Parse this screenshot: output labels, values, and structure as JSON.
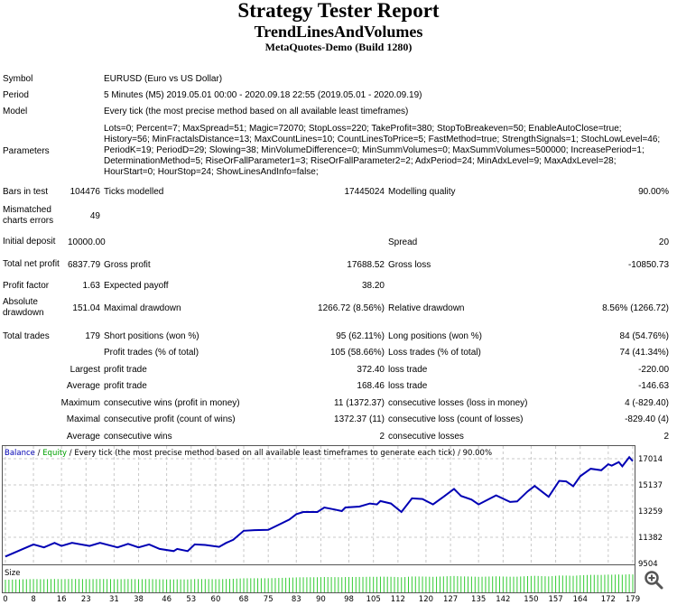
{
  "header": {
    "title": "Strategy Tester Report",
    "expert": "TrendLinesAndVolumes",
    "server": "MetaQuotes-Demo (Build 1280)"
  },
  "info": {
    "symbol_label": "Symbol",
    "symbol": "EURUSD (Euro vs US Dollar)",
    "period_label": "Period",
    "period": "5 Minutes (M5) 2019.05.01 00:00 - 2020.09.18 22:55 (2019.05.01 - 2020.09.19)",
    "model_label": "Model",
    "model": "Every tick (the most precise method based on all available least timeframes)",
    "parameters_label": "Parameters",
    "parameters": "Lots=0; Percent=7; MaxSpread=51; Magic=72070; StopLoss=220; TakeProfit=380; StopToBreakeven=50; EnableAutoClose=true; History=56; MinFractalsDistance=13; MaxCountLines=10; CountLinesToPrice=5; FastMethod=true; StrengthSignals=1; StochLowLevel=46; PeriodK=19; PeriodD=29; Slowing=38; MinVolumeDifference=0; MinSummVolumes=0; MaxSummVolumes=500000; IncreasePeriod=1; DeterminationMethod=5; RiseOrFallParameter1=3; RiseOrFallParameter2=2; AdxPeriod=24; MinAdxLevel=9; MaxAdxLevel=28; HourStart=0; HourStop=24; ShowLinesAndInfo=false;"
  },
  "stats": {
    "bars_label": "Bars in test",
    "bars": "104476",
    "ticks_label": "Ticks modelled",
    "ticks": "17445024",
    "quality_label": "Modelling quality",
    "quality": "90.00%",
    "mismatch_label": "Mismatched charts errors",
    "mismatch": "49",
    "deposit_label": "Initial deposit",
    "deposit": "10000.00",
    "spread_label": "Spread",
    "spread": "20",
    "net_label": "Total net profit",
    "net": "6837.79",
    "gross_profit_label": "Gross profit",
    "gross_profit": "17688.52",
    "gross_loss_label": "Gross loss",
    "gross_loss": "-10850.73",
    "pf_label": "Profit factor",
    "pf": "1.63",
    "payoff_label": "Expected payoff",
    "payoff": "38.20",
    "abs_dd_label": "Absolute drawdown",
    "abs_dd": "151.04",
    "max_dd_label": "Maximal drawdown",
    "max_dd": "1266.72 (8.56%)",
    "rel_dd_label": "Relative drawdown",
    "rel_dd": "8.56% (1266.72)"
  },
  "trades": {
    "total_label": "Total trades",
    "total": "179",
    "short_label": "Short positions (won %)",
    "short": "95 (62.11%)",
    "long_label": "Long positions (won %)",
    "long": "84 (54.76%)",
    "profit_trades_label": "Profit trades (% of total)",
    "profit_trades": "105 (58.66%)",
    "loss_trades_label": "Loss trades (% of total)",
    "loss_trades": "74 (41.34%)",
    "largest_label": "Largest",
    "largest_profit_label": "profit trade",
    "largest_profit": "372.40",
    "largest_loss_label": "loss trade",
    "largest_loss": "-220.00",
    "average_label": "Average",
    "avg_profit_label": "profit trade",
    "avg_profit": "168.46",
    "avg_loss_label": "loss trade",
    "avg_loss": "-146.63",
    "maximum_label": "Maximum",
    "max_wins_label": "consecutive wins (profit in money)",
    "max_wins": "11 (1372.37)",
    "max_losses_label": "consecutive losses (loss in money)",
    "max_losses": "4 (-829.40)",
    "maximal_label": "Maximal",
    "maximal_profit_label": "consecutive profit (count of wins)",
    "maximal_profit": "1372.37 (11)",
    "maximal_loss_label": "consecutive loss (count of losses)",
    "maximal_loss": "-829.40 (4)",
    "average2_label": "Average",
    "avg_wins_label": "consecutive wins",
    "avg_wins": "2",
    "avg_losses_label": "consecutive losses",
    "avg_losses": "2"
  },
  "chart_data": {
    "type": "line",
    "legend": {
      "balance": "Balance",
      "sep1": " / ",
      "equity": "Equity",
      "rest": " / Every tick (the most precise method based on all available least timeframes to generate each tick) / 90.00%"
    },
    "size_label": "Size",
    "colors": {
      "balance": "#0000b4",
      "equity": "#00c800",
      "size": "#33cc33",
      "grid": "#c8c8c8"
    },
    "y_ticks": [
      17014,
      15137,
      13259,
      11382,
      9504
    ],
    "ylim": [
      9504,
      17014
    ],
    "x_ticks": [
      0,
      8,
      16,
      23,
      31,
      38,
      46,
      53,
      60,
      68,
      75,
      83,
      90,
      98,
      105,
      112,
      120,
      127,
      135,
      142,
      150,
      157,
      164,
      172,
      179
    ],
    "xlim": [
      0,
      179
    ],
    "grid": true,
    "balance": [
      [
        0,
        10000
      ],
      [
        3,
        10329
      ],
      [
        5,
        10546
      ],
      [
        8,
        10871
      ],
      [
        11,
        10654
      ],
      [
        14,
        10980
      ],
      [
        16,
        10763
      ],
      [
        19,
        10980
      ],
      [
        24,
        10763
      ],
      [
        27,
        10980
      ],
      [
        32,
        10654
      ],
      [
        35,
        10910
      ],
      [
        38,
        10654
      ],
      [
        41,
        10871
      ],
      [
        44,
        10546
      ],
      [
        48,
        10394
      ],
      [
        49,
        10546
      ],
      [
        52,
        10394
      ],
      [
        54,
        10871
      ],
      [
        57,
        10828
      ],
      [
        61,
        10698
      ],
      [
        63,
        10980
      ],
      [
        65,
        11197
      ],
      [
        68,
        11848
      ],
      [
        71,
        11891
      ],
      [
        75,
        11913
      ],
      [
        78,
        12282
      ],
      [
        81,
        12651
      ],
      [
        83,
        13042
      ],
      [
        85,
        13194
      ],
      [
        89,
        13194
      ],
      [
        91,
        13519
      ],
      [
        94,
        13367
      ],
      [
        96,
        13259
      ],
      [
        97,
        13519
      ],
      [
        101,
        13584
      ],
      [
        104,
        13801
      ],
      [
        106,
        13736
      ],
      [
        107,
        13975
      ],
      [
        110,
        13801
      ],
      [
        113,
        13194
      ],
      [
        116,
        14171
      ],
      [
        119,
        14127
      ],
      [
        122,
        13736
      ],
      [
        125,
        14279
      ],
      [
        128,
        14844
      ],
      [
        130,
        14344
      ],
      [
        133,
        14084
      ],
      [
        135,
        13736
      ],
      [
        138,
        14127
      ],
      [
        140,
        14388
      ],
      [
        144,
        13910
      ],
      [
        146,
        13953
      ],
      [
        149,
        14670
      ],
      [
        151,
        15061
      ],
      [
        155,
        14279
      ],
      [
        158,
        15430
      ],
      [
        160,
        15387
      ],
      [
        162,
        15040
      ],
      [
        164,
        15756
      ],
      [
        167,
        16297
      ],
      [
        170,
        16188
      ],
      [
        172,
        16622
      ],
      [
        173,
        16514
      ],
      [
        175,
        16774
      ],
      [
        176,
        16470
      ],
      [
        178,
        17122
      ],
      [
        179,
        16838
      ]
    ]
  }
}
